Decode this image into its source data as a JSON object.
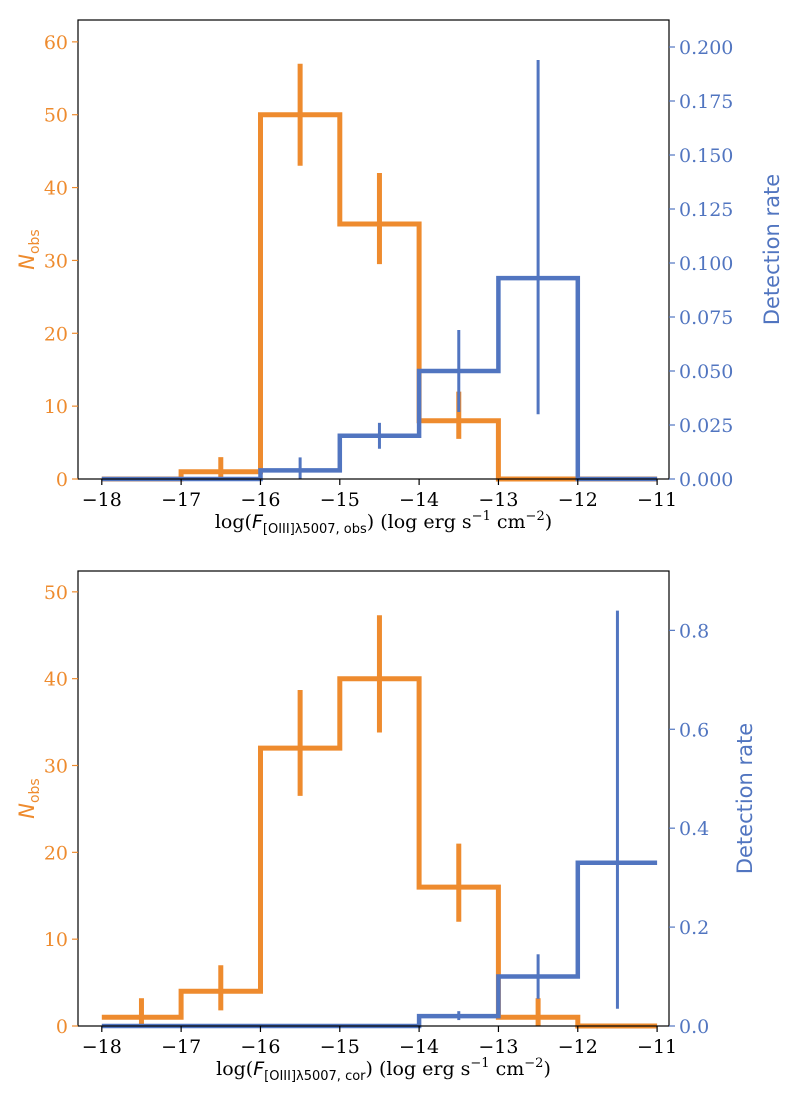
{
  "colors": {
    "orange": "#EE8B2E",
    "blue": "#5175C0",
    "frame": "#000000"
  },
  "chart_data": [
    {
      "type": "histogram",
      "xlabel": {
        "pre": "log(",
        "italic": "F",
        "sub": "[OIII]λ5007, obs",
        "post": ") (log erg s",
        "exp1": "−1",
        "mid": " cm",
        "exp2": "−2",
        "end": ")"
      },
      "ylabel_left": {
        "italic": "N",
        "sub": "obs"
      },
      "ylabel_right": "Detection rate",
      "xlim": [
        -18.3,
        -10.85
      ],
      "xticks": [
        -18,
        -17,
        -16,
        -15,
        -14,
        -13,
        -12,
        -11
      ],
      "ylim_left": [
        0,
        63
      ],
      "yticks_left": [
        0,
        10,
        20,
        30,
        40,
        50,
        60
      ],
      "ylim_right": [
        0,
        0.2125
      ],
      "yticks_right": [
        0.0,
        0.025,
        0.05,
        0.075,
        0.1,
        0.125,
        0.15,
        0.175,
        0.2
      ],
      "yticklabels_right": [
        "0.000",
        "0.025",
        "0.050",
        "0.075",
        "0.100",
        "0.125",
        "0.150",
        "0.175",
        "0.200"
      ],
      "bin_edges": [
        -18,
        -17,
        -16,
        -15,
        -14,
        -13,
        -12,
        -11
      ],
      "series": [
        {
          "name": "N_obs",
          "axis": "left",
          "color": "orange",
          "values": [
            0,
            1,
            50,
            35,
            8,
            0,
            0
          ],
          "errors": [
            [
              -16.5,
              0,
              3
            ],
            [
              -15.5,
              43,
              57
            ],
            [
              -14.5,
              29.5,
              42
            ],
            [
              -13.5,
              5.5,
              12
            ]
          ]
        },
        {
          "name": "Detection rate",
          "axis": "right",
          "color": "blue",
          "values": [
            0,
            0,
            0.004,
            0.02,
            0.05,
            0.093,
            0
          ],
          "errors": [
            [
              -15.5,
              0,
              0.01
            ],
            [
              -14.5,
              0.014,
              0.026
            ],
            [
              -13.5,
              0.031,
              0.069
            ],
            [
              -12.5,
              0.03,
              0.194
            ]
          ]
        }
      ]
    },
    {
      "type": "histogram",
      "xlabel": {
        "pre": "log(",
        "italic": "F",
        "sub": "[OIII]λ5007, cor",
        "post": ") (log erg s",
        "exp1": "−1",
        "mid": " cm",
        "exp2": "−2",
        "end": ")"
      },
      "ylabel_left": {
        "italic": "N",
        "sub": "obs"
      },
      "ylabel_right": "Detection rate",
      "xlim": [
        -18.3,
        -10.85
      ],
      "xticks": [
        -18,
        -17,
        -16,
        -15,
        -14,
        -13,
        -12,
        -11
      ],
      "ylim_left": [
        0,
        52.4
      ],
      "yticks_left": [
        0,
        10,
        20,
        30,
        40,
        50
      ],
      "ylim_right": [
        0,
        0.92
      ],
      "yticks_right": [
        0.0,
        0.2,
        0.4,
        0.6,
        0.8
      ],
      "yticklabels_right": [
        "0.0",
        "0.2",
        "0.4",
        "0.6",
        "0.8"
      ],
      "bin_edges": [
        -18,
        -17,
        -16,
        -15,
        -14,
        -13,
        -12,
        -11
      ],
      "series": [
        {
          "name": "N_obs",
          "axis": "left",
          "color": "orange",
          "values": [
            1,
            4,
            32,
            40,
            16,
            1,
            0
          ],
          "errors": [
            [
              -17.5,
              0,
              3.2
            ],
            [
              -16.5,
              1.8,
              7
            ],
            [
              -15.5,
              26.5,
              38.7
            ],
            [
              -14.5,
              33.8,
              47.3
            ],
            [
              -13.5,
              12,
              21
            ],
            [
              -12.5,
              0,
              3.2
            ]
          ]
        },
        {
          "name": "Detection rate",
          "axis": "right",
          "color": "blue",
          "values": [
            0,
            0,
            0,
            0,
            0.02,
            0.1,
            0.33
          ],
          "errors": [
            [
              -13.5,
              0.012,
              0.03
            ],
            [
              -12.5,
              0.055,
              0.145
            ],
            [
              -11.5,
              0.035,
              0.84
            ]
          ]
        }
      ]
    }
  ]
}
